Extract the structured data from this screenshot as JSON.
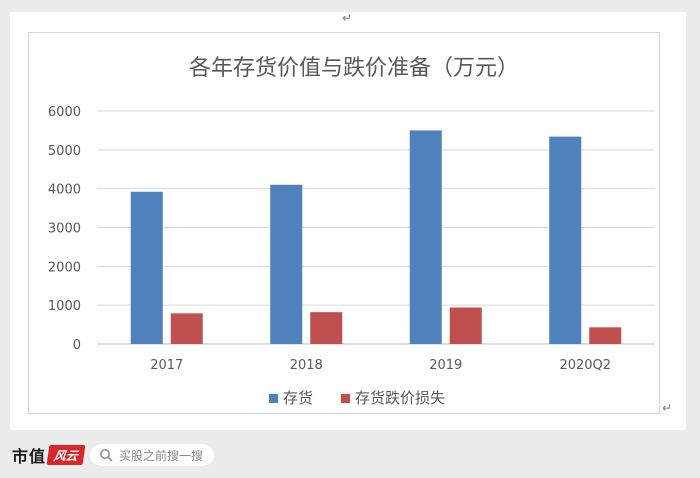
{
  "chart_data": {
    "type": "bar",
    "title": "各年存货价值与跌价准备（万元）",
    "categories": [
      "2017",
      "2018",
      "2019",
      "2020Q2"
    ],
    "series": [
      {
        "name": "存货",
        "values": [
          3920,
          4100,
          5500,
          5340
        ],
        "color": "#4f81bd"
      },
      {
        "name": "存货跌价损失",
        "values": [
          790,
          820,
          940,
          430
        ],
        "color": "#c0504d"
      }
    ],
    "ylim": [
      0,
      6000
    ],
    "yticks": [
      "0",
      "1000",
      "2000",
      "3000",
      "4000",
      "5000",
      "6000"
    ],
    "grid": true,
    "legend_position": "bottom"
  },
  "brand": {
    "name": "市值",
    "logo_text": "风云"
  },
  "search": {
    "placeholder": "买股之前搜一搜"
  }
}
